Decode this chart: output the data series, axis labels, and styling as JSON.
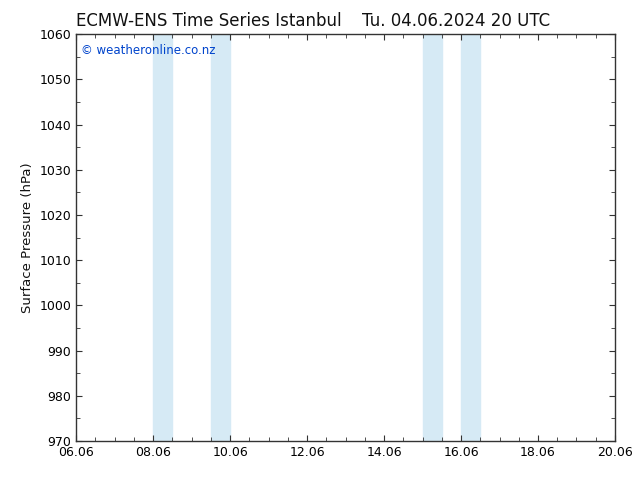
{
  "title_left": "ECMW-ENS Time Series Istanbul",
  "title_right": "Tu. 04.06.2024 20 UTC",
  "ylabel": "Surface Pressure (hPa)",
  "ylim": [
    970,
    1060
  ],
  "yticks": [
    970,
    980,
    990,
    1000,
    1010,
    1020,
    1030,
    1040,
    1050,
    1060
  ],
  "xlim": [
    0,
    14
  ],
  "xtick_positions": [
    0,
    2,
    4,
    6,
    8,
    10,
    12,
    14
  ],
  "xtick_labels": [
    "06.06",
    "08.06",
    "10.06",
    "12.06",
    "14.06",
    "16.06",
    "18.06",
    "20.06"
  ],
  "shade_bands": [
    {
      "xmin": 2.0,
      "xmax": 2.5
    },
    {
      "xmin": 3.5,
      "xmax": 4.0
    },
    {
      "xmin": 9.0,
      "xmax": 9.5
    },
    {
      "xmin": 10.0,
      "xmax": 10.5
    }
  ],
  "shade_color": "#d6eaf5",
  "background_color": "#ffffff",
  "spine_color": "#333333",
  "copyright_text": "© weatheronline.co.nz",
  "copyright_color": "#0044cc",
  "title_color": "#111111",
  "title_fontsize": 12,
  "label_fontsize": 9.5,
  "tick_fontsize": 9
}
